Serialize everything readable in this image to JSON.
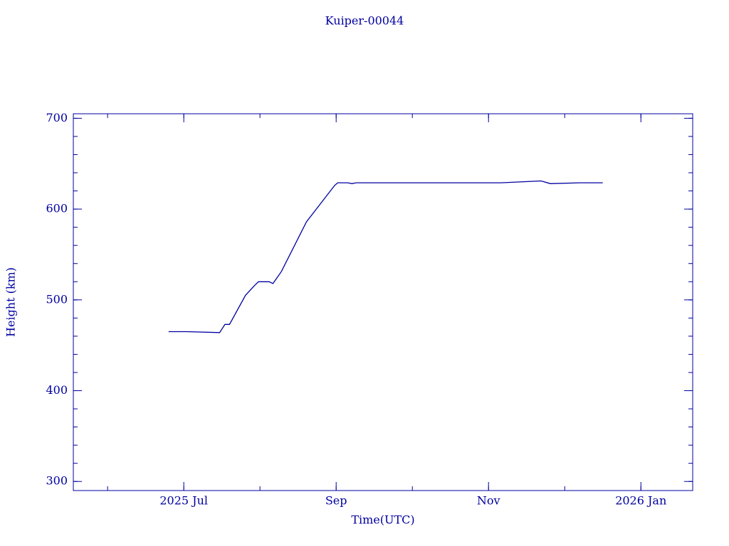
{
  "chart_data": {
    "type": "line",
    "title": "Kuiper-00044",
    "x_label": "Time(UTC)",
    "y_label": "Height (km)",
    "color": "#0000a0",
    "x": [
      6.8,
      7.04,
      7.47,
      7.54,
      7.6,
      7.81,
      7.93,
      7.98,
      8.12,
      8.17,
      8.28,
      8.61,
      8.98,
      9.02,
      9.15,
      9.21,
      9.26,
      10.2,
      11.16,
      11.69,
      11.81,
      12.2,
      12.5
    ],
    "series": [
      {
        "name": "Height",
        "color": "#0000a0",
        "values": [
          465,
          465,
          464,
          473,
          473,
          505,
          516,
          520,
          520,
          518,
          531,
          586,
          626,
          629,
          629,
          628,
          629,
          629,
          629,
          631,
          628,
          629,
          629
        ]
      }
    ],
    "xlim": [
      5.55,
      13.68
    ],
    "xticks": [
      {
        "value": 7,
        "label": "2025 Jul"
      },
      {
        "value": 9,
        "label": "Sep"
      },
      {
        "value": 11,
        "label": "Nov"
      },
      {
        "value": 13,
        "label": "2026 Jan"
      }
    ],
    "ylim": [
      290,
      705
    ],
    "yticks": [
      300,
      400,
      500,
      600,
      700
    ]
  }
}
